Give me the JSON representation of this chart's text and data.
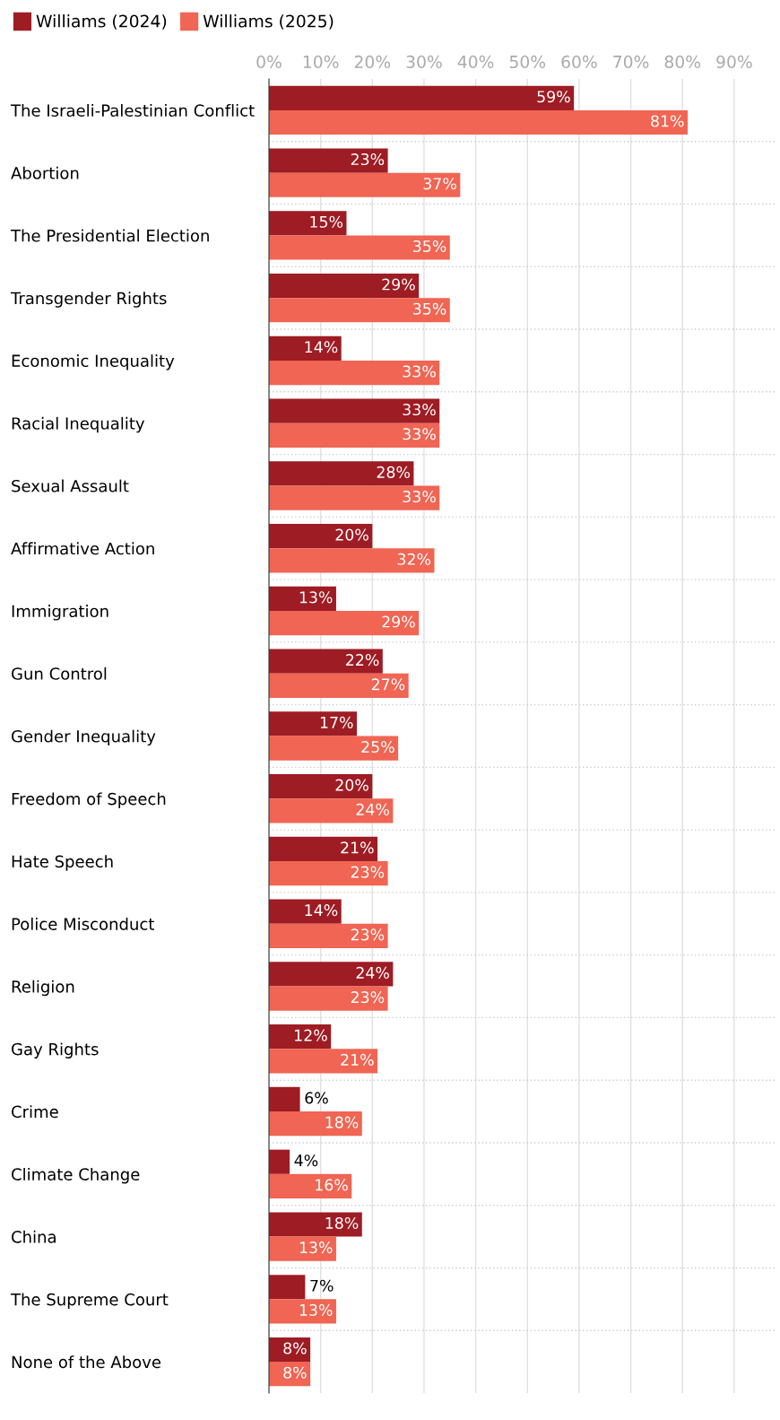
{
  "chart_data": {
    "type": "bar",
    "orientation": "horizontal",
    "categories": [
      "The Israeli-Palestinian Conflict",
      "Abortion",
      "The Presidential Election",
      "Transgender Rights",
      "Economic Inequality",
      "Racial Inequality",
      "Sexual Assault",
      "Affirmative Action",
      "Immigration",
      "Gun Control",
      "Gender Inequality",
      "Freedom of Speech",
      "Hate Speech",
      "Police Misconduct",
      "Religion",
      "Gay Rights",
      "Crime",
      "Climate Change",
      "China",
      "The Supreme Court",
      "None of the Above"
    ],
    "series": [
      {
        "name": "Williams (2024)",
        "color": "#9e1c24",
        "values": [
          59,
          23,
          15,
          29,
          14,
          33,
          28,
          20,
          13,
          22,
          17,
          20,
          21,
          14,
          24,
          12,
          6,
          4,
          18,
          7,
          8
        ],
        "value_labels": [
          "59%",
          "23%",
          "15%",
          "29%",
          "14%",
          "33%",
          "28%",
          "20%",
          "13%",
          "22%",
          "17%",
          "20%",
          "21%",
          "14%",
          "24%",
          "12%",
          "6%",
          "4%",
          "18%",
          "7%",
          "8%"
        ]
      },
      {
        "name": "Williams (2025)",
        "color": "#f06553",
        "values": [
          81,
          37,
          35,
          35,
          33,
          33,
          33,
          32,
          29,
          27,
          25,
          24,
          23,
          23,
          23,
          21,
          18,
          16,
          13,
          13,
          8
        ],
        "value_labels": [
          "81%",
          "37%",
          "35%",
          "35%",
          "33%",
          "33%",
          "33%",
          "32%",
          "29%",
          "27%",
          "25%",
          "24%",
          "23%",
          "23%",
          "23%",
          "21%",
          "18%",
          "16%",
          "13%",
          "13%",
          "8%"
        ]
      }
    ],
    "xlim": [
      0,
      98
    ],
    "xticks": [
      {
        "value": 0,
        "label": "0%"
      },
      {
        "value": 10,
        "label": "10%"
      },
      {
        "value": 20,
        "label": "20%"
      },
      {
        "value": 30,
        "label": "30%"
      },
      {
        "value": 40,
        "label": "40%"
      },
      {
        "value": 50,
        "label": "50%"
      },
      {
        "value": 60,
        "label": "60%"
      },
      {
        "value": 70,
        "label": "70%"
      },
      {
        "value": 80,
        "label": "80%"
      },
      {
        "value": 90,
        "label": "90%"
      }
    ],
    "grid": "x",
    "legend": "top left"
  }
}
